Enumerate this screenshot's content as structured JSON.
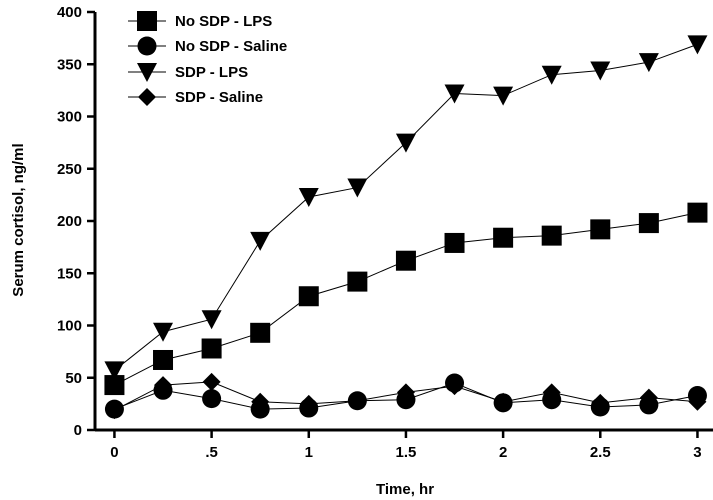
{
  "chart_data": {
    "type": "line",
    "xlabel": "Time, hr",
    "ylabel": "Serum cortisol, ng/ml",
    "xlim": [
      -0.1,
      3.08
    ],
    "ylim": [
      0,
      400
    ],
    "x_ticks": [
      0,
      0.5,
      1,
      1.5,
      2,
      2.5,
      3
    ],
    "x_tick_labels": [
      "0",
      ".5",
      "1",
      "1.5",
      "2",
      "2.5",
      "3"
    ],
    "y_ticks": [
      0,
      50,
      100,
      150,
      200,
      250,
      300,
      350,
      400
    ],
    "y_tick_labels": [
      "0",
      "50",
      "100",
      "150",
      "200",
      "250",
      "300",
      "350",
      "400"
    ],
    "grid": false,
    "legend_position": "top-left",
    "x": [
      0,
      0.25,
      0.5,
      0.75,
      1,
      1.25,
      1.5,
      1.75,
      2,
      2.25,
      2.5,
      2.75,
      3
    ],
    "series": [
      {
        "name": "No SDP - LPS",
        "marker": "square",
        "values": [
          43,
          67,
          78,
          93,
          128,
          142,
          162,
          179,
          184,
          186,
          192,
          198,
          208
        ]
      },
      {
        "name": "No SDP - Saline",
        "marker": "circle",
        "values": [
          20,
          38,
          30,
          20,
          21,
          28,
          29,
          45,
          26,
          29,
          22,
          24,
          33
        ]
      },
      {
        "name": "SDP - LPS",
        "marker": "triangle-down",
        "values": [
          57,
          94,
          106,
          181,
          223,
          232,
          275,
          322,
          320,
          340,
          344,
          352,
          369
        ]
      },
      {
        "name": "SDP - Saline",
        "marker": "diamond",
        "values": [
          19,
          43,
          46,
          27,
          25,
          28,
          36,
          42,
          27,
          36,
          26,
          31,
          27
        ]
      }
    ]
  }
}
